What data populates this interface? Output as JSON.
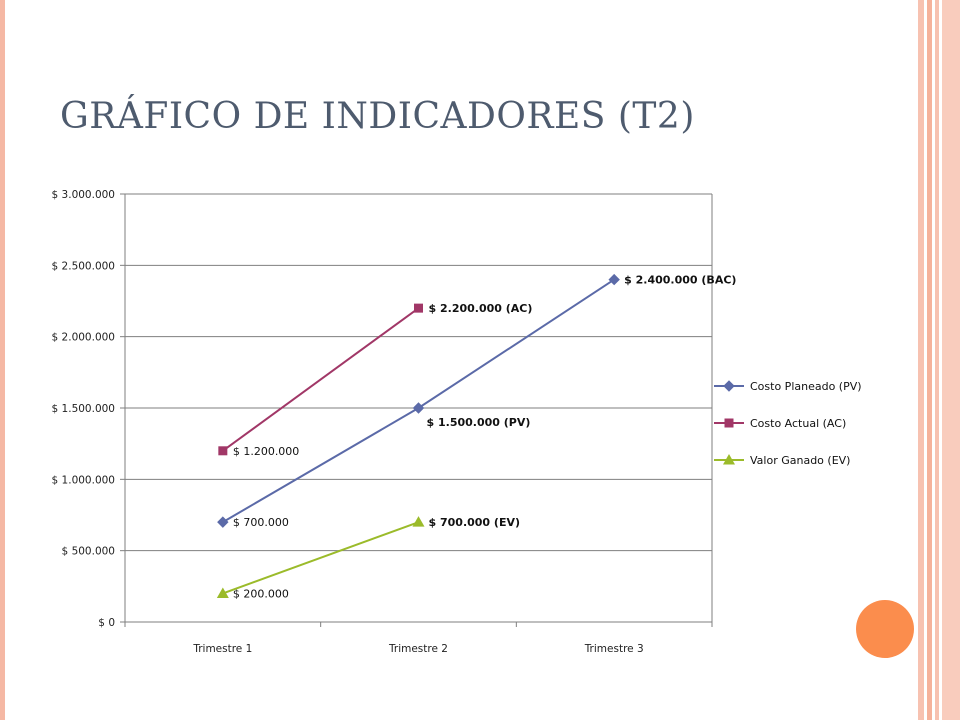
{
  "slide": {
    "title": "GRÁFICO DE INDICADORES (T2)",
    "accent_color": "#fb8d4d",
    "border_color": "#f5b8a4"
  },
  "chart_data": {
    "type": "line",
    "categories": [
      "Trimestre 1",
      "Trimestre 2",
      "Trimestre 3"
    ],
    "ylim": [
      0,
      3000000
    ],
    "yticks": [
      0,
      500000,
      1000000,
      1500000,
      2000000,
      2500000,
      3000000
    ],
    "ytick_labels": [
      "$ 0",
      "$ 500.000",
      "$ 1.000.000",
      "$ 1.500.000",
      "$ 2.000.000",
      "$ 2.500.000",
      "$ 3.000.000"
    ],
    "grid": true,
    "legend_position": "right",
    "series": [
      {
        "name": "Costo Planeado (PV)",
        "color": "#5b6aa8",
        "marker": "diamond",
        "values": [
          700000,
          1500000,
          2400000
        ],
        "labels": [
          "$ 700.000",
          "$ 1.500.000 (PV)",
          "$ 2.400.000 (BAC)"
        ],
        "label_bold": [
          false,
          true,
          true
        ]
      },
      {
        "name": "Costo Actual (AC)",
        "color": "#a13767",
        "marker": "square",
        "values": [
          1200000,
          2200000,
          null
        ],
        "labels": [
          "$ 1.200.000",
          "$ 2.200.000 (AC)",
          null
        ],
        "label_bold": [
          false,
          true,
          false
        ]
      },
      {
        "name": "Valor Ganado (EV)",
        "color": "#9bbb2a",
        "marker": "triangle",
        "values": [
          200000,
          700000,
          null
        ],
        "labels": [
          "$ 200.000",
          "$ 700.000 (EV)",
          null
        ],
        "label_bold": [
          false,
          true,
          false
        ]
      }
    ]
  }
}
